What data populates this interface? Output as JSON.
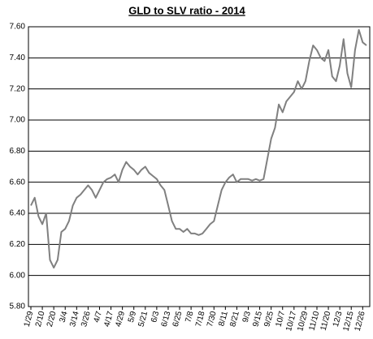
{
  "chart_data": {
    "type": "line",
    "title": "GLD to SLV ratio - 2014",
    "categories": [
      "1/29",
      null,
      null,
      "2/10",
      null,
      null,
      "2/20",
      null,
      null,
      "3/4",
      null,
      null,
      "3/14",
      null,
      null,
      "3/26",
      null,
      null,
      "4/7",
      null,
      null,
      "4/17",
      null,
      null,
      "4/29",
      null,
      null,
      "5/9",
      null,
      null,
      "5/21",
      null,
      null,
      "6/3",
      null,
      null,
      "6/13",
      null,
      null,
      "6/25",
      null,
      null,
      "7/8",
      null,
      null,
      "7/18",
      null,
      null,
      "7/30",
      null,
      null,
      "8/11",
      null,
      null,
      "8/21",
      null,
      null,
      "9/3",
      null,
      null,
      "9/15",
      null,
      null,
      "9/25",
      null,
      null,
      "10/7",
      null,
      null,
      "10/17",
      null,
      null,
      "10/29",
      null,
      null,
      "11/10",
      null,
      null,
      "11/20",
      null,
      null,
      "12/3",
      null,
      null,
      "12/15",
      null,
      null,
      "12/26",
      null
    ],
    "series": [
      {
        "name": "GLD/SLV",
        "color": "#808080",
        "values": [
          6.45,
          6.5,
          6.38,
          6.33,
          6.4,
          6.1,
          6.05,
          6.1,
          6.28,
          6.3,
          6.35,
          6.45,
          6.5,
          6.52,
          6.55,
          6.58,
          6.55,
          6.5,
          6.55,
          6.6,
          6.62,
          6.63,
          6.65,
          6.6,
          6.68,
          6.73,
          6.7,
          6.68,
          6.65,
          6.68,
          6.7,
          6.66,
          6.64,
          6.62,
          6.58,
          6.55,
          6.45,
          6.35,
          6.3,
          6.3,
          6.28,
          6.3,
          6.27,
          6.27,
          6.26,
          6.27,
          6.3,
          6.33,
          6.35,
          6.45,
          6.55,
          6.6,
          6.63,
          6.65,
          6.6,
          6.62,
          6.62,
          6.62,
          6.61,
          6.62,
          6.61,
          6.62,
          6.75,
          6.88,
          6.95,
          7.1,
          7.05,
          7.12,
          7.15,
          7.18,
          7.25,
          7.2,
          7.25,
          7.38,
          7.48,
          7.45,
          7.4,
          7.38,
          7.45,
          7.28,
          7.25,
          7.35,
          7.52,
          7.3,
          7.21,
          7.45,
          7.58,
          7.5,
          7.48
        ]
      }
    ],
    "ylim": [
      5.8,
      7.6
    ],
    "yticks": [
      {
        "value": 5.8,
        "label": "5.80"
      },
      {
        "value": 6,
        "label": "6.00"
      },
      {
        "value": 6.2,
        "label": "6.20"
      },
      {
        "value": 6.4,
        "label": "6.40"
      },
      {
        "value": 6.6,
        "label": "6.60"
      },
      {
        "value": 6.8,
        "label": "6.80"
      },
      {
        "value": 7,
        "label": "7.00"
      },
      {
        "value": 7.2,
        "label": "7.20"
      },
      {
        "value": 7.4,
        "label": "7.40"
      },
      {
        "value": 7.6,
        "label": "7.60"
      }
    ],
    "grid": true
  }
}
